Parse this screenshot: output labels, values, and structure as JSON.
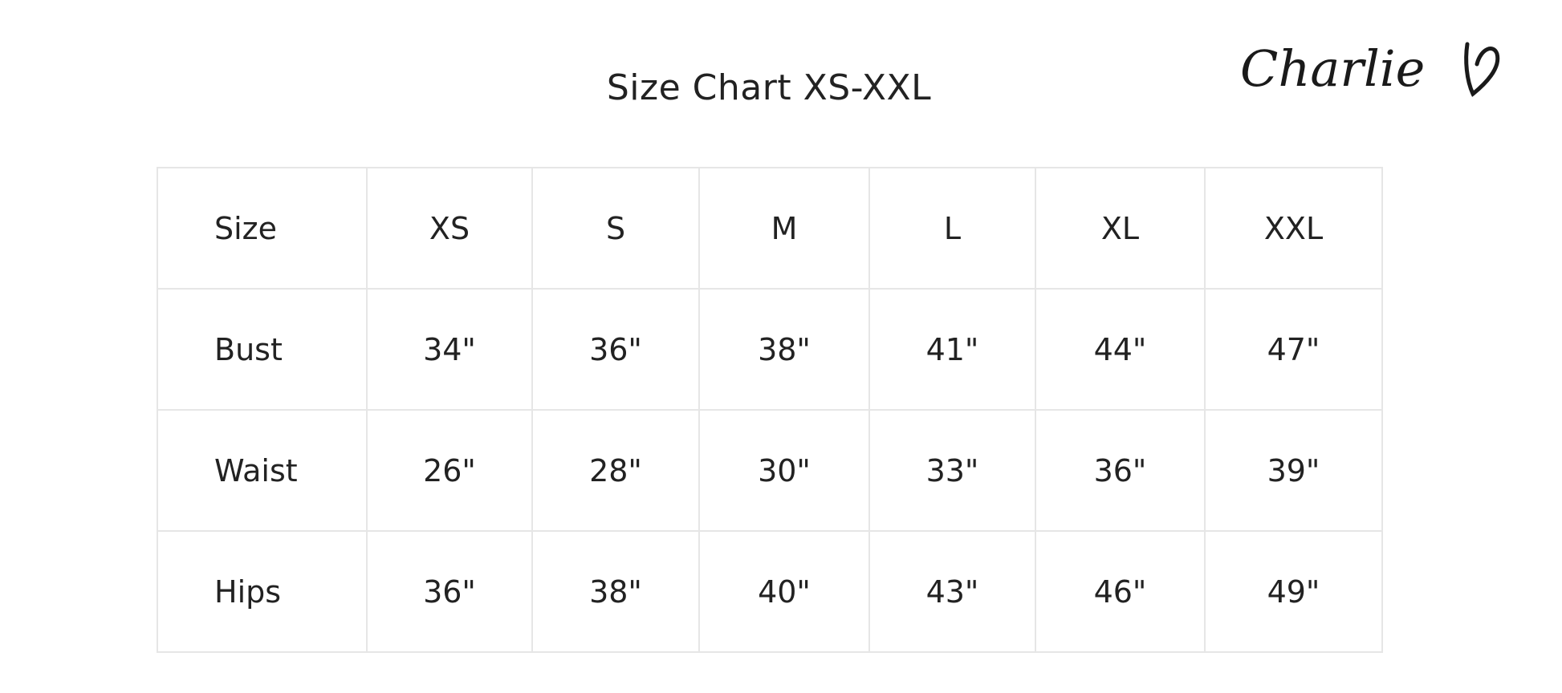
{
  "title": "Size Chart XS-XXL",
  "logo": {
    "text": "Charlie",
    "icon": "heart-icon"
  },
  "table": {
    "header": [
      "Size",
      "XS",
      "S",
      "M",
      "L",
      "XL",
      "XXL"
    ],
    "rows": [
      [
        "Bust",
        "34\"",
        "36\"",
        "38\"",
        "41\"",
        "44\"",
        "47\""
      ],
      [
        "Waist",
        "26\"",
        "28\"",
        "30\"",
        "33\"",
        "36\"",
        "39\""
      ],
      [
        "Hips",
        "36\"",
        "38\"",
        "40\"",
        "43\"",
        "46\"",
        "49\""
      ]
    ]
  }
}
